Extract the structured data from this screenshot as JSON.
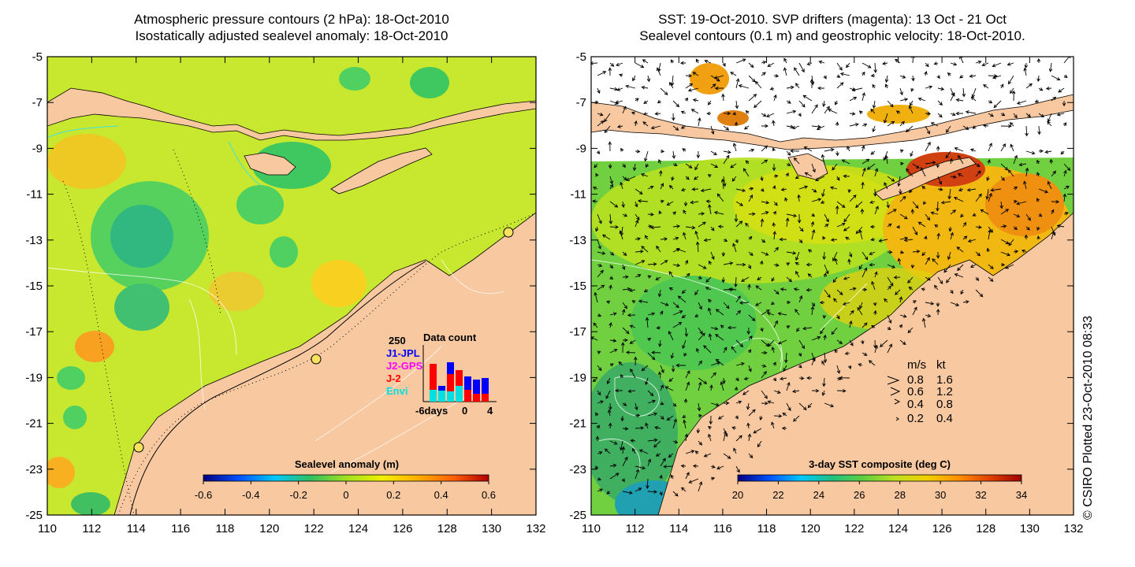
{
  "left_panel": {
    "title_line1": "Atmospheric pressure contours (2 hPa): 18-Oct-2010",
    "title_line2": "Isostatically adjusted sealevel anomaly: 18-Oct-2010",
    "colorbar_label": "Sealevel anomaly (m)",
    "colorbar_ticks": [
      "-0.6",
      "-0.4",
      "-0.2",
      "0",
      "0.2",
      "0.4",
      "0.6"
    ],
    "colorbar_colors": [
      "#000080",
      "#0050ff",
      "#00c8ff",
      "#30c060",
      "#a0e020",
      "#f0f000",
      "#ffb000",
      "#ff6000",
      "#b00000"
    ],
    "inset": {
      "count_label": "250",
      "title": "Data count",
      "missions": [
        {
          "name": "J1-JPL",
          "color": "#0000ff"
        },
        {
          "name": "J2-GPS",
          "color": "#ff00ff"
        },
        {
          "name": "J-2",
          "color": "#ff0000"
        },
        {
          "name": "Envi",
          "color": "#00e0e0"
        }
      ],
      "x_left": "-6days",
      "x_mid": "0",
      "x_right": "4"
    }
  },
  "right_panel": {
    "title_line1": "SST: 19-Oct-2010. SVP drifters (magenta): 13 Oct - 21 Oct",
    "title_line2": "Sealevel contours (0.1 m) and geostrophic velocity: 18-Oct-2010.",
    "colorbar_label": "3-day SST composite (deg C)",
    "colorbar_ticks": [
      "20",
      "22",
      "24",
      "26",
      "28",
      "30",
      "32",
      "34"
    ],
    "colorbar_colors": [
      "#000080",
      "#0050ff",
      "#00c8ff",
      "#20c080",
      "#60d040",
      "#c0e020",
      "#f0d000",
      "#ff9000",
      "#e04000",
      "#a00000"
    ],
    "speed_legend": {
      "header_ms": "m/s",
      "header_kt": "kt",
      "rows": [
        {
          "ms": "0.8",
          "kt": "1.6"
        },
        {
          "ms": "0.6",
          "kt": "1.2"
        },
        {
          "ms": "0.4",
          "kt": "0.8"
        },
        {
          "ms": "0.2",
          "kt": "0.4"
        }
      ]
    }
  },
  "axes": {
    "x_ticks": [
      "110",
      "112",
      "114",
      "116",
      "118",
      "120",
      "122",
      "124",
      "126",
      "128",
      "130",
      "132"
    ],
    "y_ticks": [
      "-5",
      "-7",
      "-9",
      "-11",
      "-13",
      "-15",
      "-17",
      "-19",
      "-21",
      "-23",
      "-25"
    ]
  },
  "copyright": "© CSIRO Plotted 23-Oct-2010 08:33",
  "colors": {
    "land": "#f8c8a0",
    "ocean_base": "#c8e830",
    "sst_base": "#70d040"
  }
}
